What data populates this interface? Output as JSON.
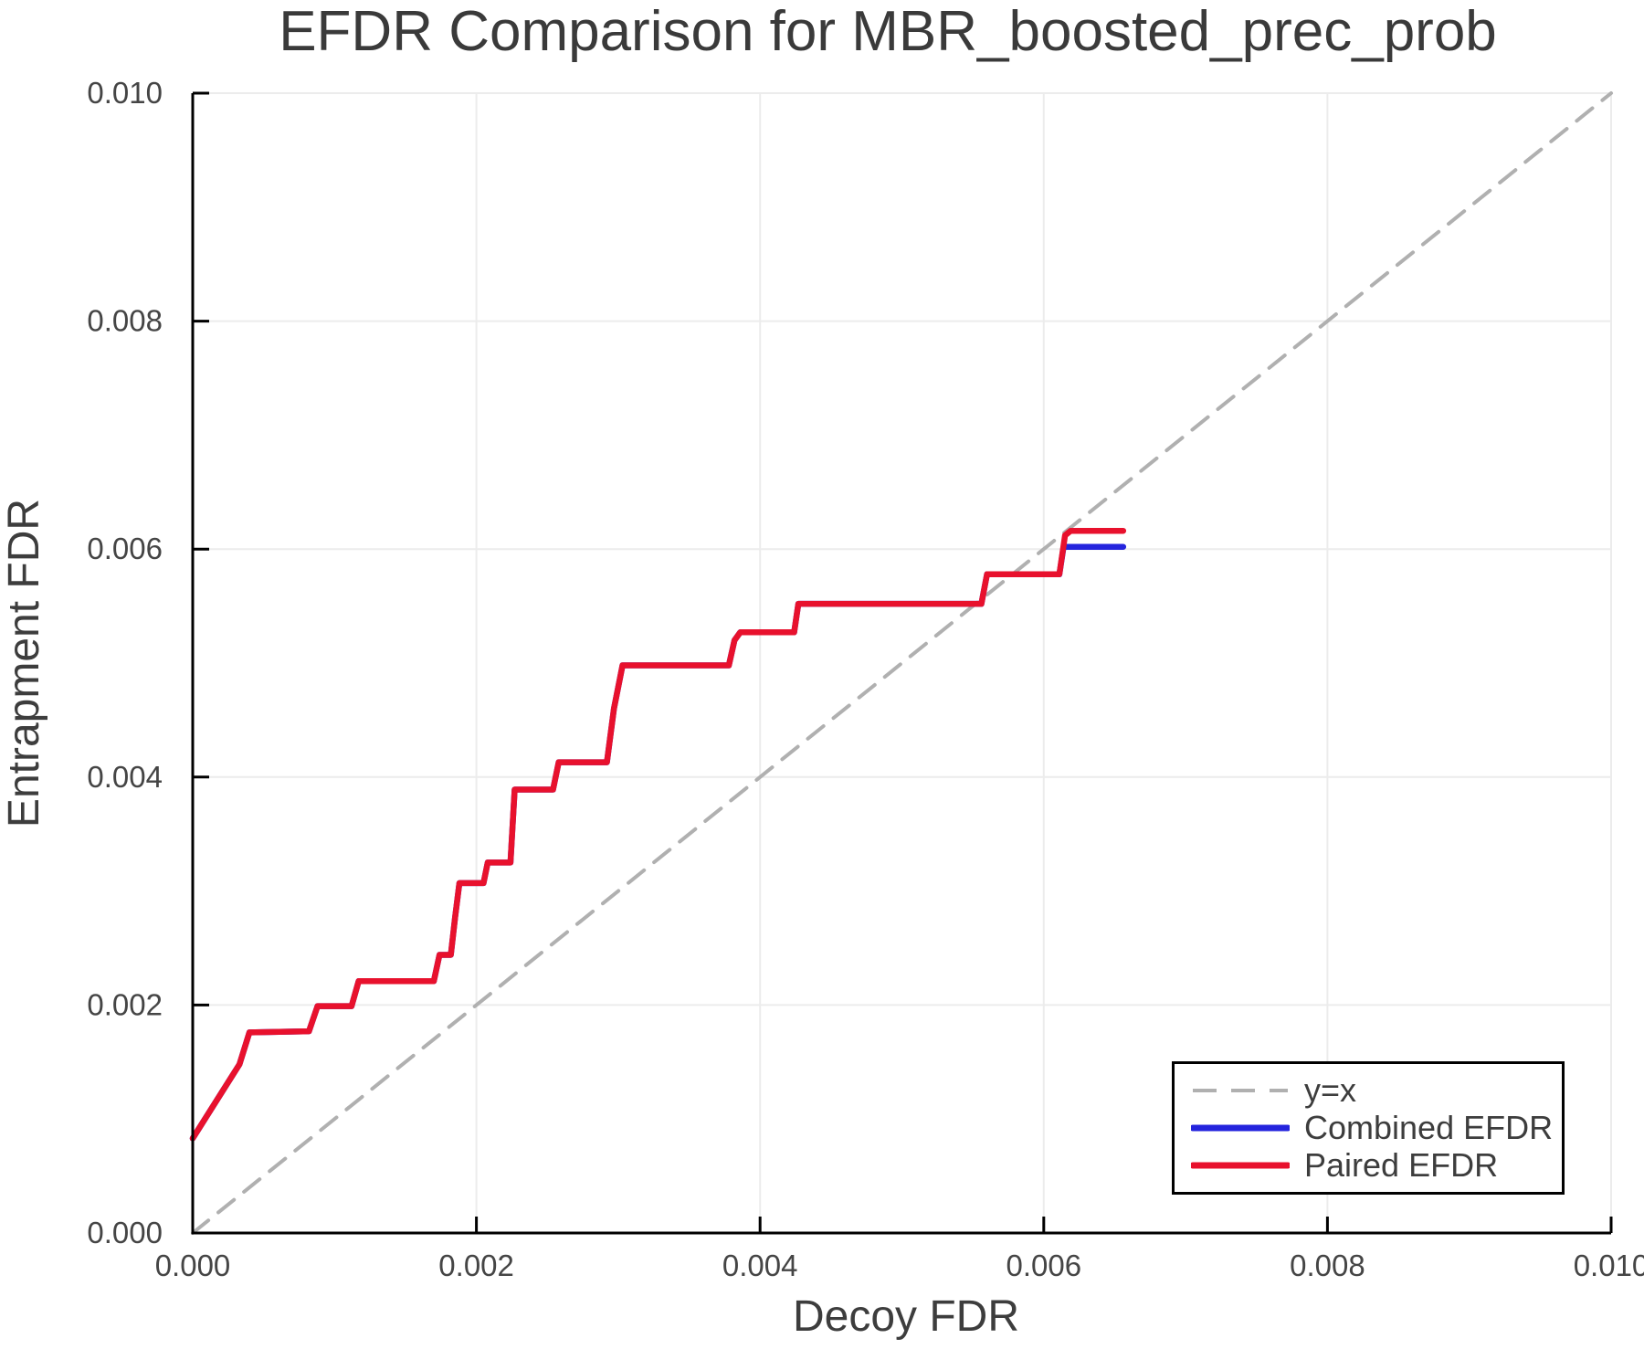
{
  "title": "EFDR Comparison for MBR_boosted_prec_prob",
  "colors": {
    "axis": "#000000",
    "grid": "#ececec",
    "text": "#3d3d3d",
    "reference_dash": "#b0b0b0",
    "combined": "#2424dd",
    "paired": "#e8112d"
  },
  "chart_data": {
    "type": "line",
    "title": "EFDR Comparison for MBR_boosted_prec_prob",
    "xlabel": "Decoy FDR",
    "ylabel": "Entrapment FDR",
    "xlim": [
      0.0,
      0.01
    ],
    "ylim": [
      0.0,
      0.01
    ],
    "xticks": [
      0.0,
      0.002,
      0.004,
      0.006,
      0.008,
      0.01
    ],
    "yticks": [
      0.0,
      0.002,
      0.004,
      0.006,
      0.008,
      0.01
    ],
    "tick_decimals": 3,
    "grid": true,
    "legend": {
      "position": "lower-right",
      "entries": [
        {
          "label": "y=x",
          "color": "#b0b0b0",
          "dashed": true
        },
        {
          "label": "Combined EFDR",
          "color": "#2424dd",
          "dashed": false
        },
        {
          "label": "Paired EFDR",
          "color": "#e8112d",
          "dashed": false
        }
      ]
    },
    "series": [
      {
        "name": "y=x",
        "color": "#b0b0b0",
        "style": "dashed",
        "width": 4,
        "points": [
          [
            0.0,
            0.0
          ],
          [
            0.01,
            0.01
          ]
        ]
      },
      {
        "name": "Combined EFDR",
        "color": "#2424dd",
        "style": "solid",
        "width": 6.5,
        "points": [
          [
            0.0,
            0.00083
          ],
          [
            0.00033,
            0.00148
          ],
          [
            0.0004,
            0.00176
          ],
          [
            0.00082,
            0.00177
          ],
          [
            0.00088,
            0.00199
          ],
          [
            0.00112,
            0.00199
          ],
          [
            0.00117,
            0.00221
          ],
          [
            0.0017,
            0.00221
          ],
          [
            0.00174,
            0.00244
          ],
          [
            0.00182,
            0.00244
          ],
          [
            0.00185,
            0.00277
          ],
          [
            0.00188,
            0.00307
          ],
          [
            0.00205,
            0.00307
          ],
          [
            0.00208,
            0.00325
          ],
          [
            0.00224,
            0.00325
          ],
          [
            0.00227,
            0.00389
          ],
          [
            0.00254,
            0.00389
          ],
          [
            0.00258,
            0.00413
          ],
          [
            0.00292,
            0.00413
          ],
          [
            0.00297,
            0.0046
          ],
          [
            0.00303,
            0.00498
          ],
          [
            0.00378,
            0.00498
          ],
          [
            0.00382,
            0.0052
          ],
          [
            0.00386,
            0.00527
          ],
          [
            0.00424,
            0.00527
          ],
          [
            0.00427,
            0.00552
          ],
          [
            0.00556,
            0.00552
          ],
          [
            0.0056,
            0.00578
          ],
          [
            0.00611,
            0.00578
          ],
          [
            0.00614,
            0.00602
          ],
          [
            0.00656,
            0.00602
          ]
        ]
      },
      {
        "name": "Paired EFDR",
        "color": "#e8112d",
        "style": "solid",
        "width": 6.5,
        "points": [
          [
            0.0,
            0.00083
          ],
          [
            0.00033,
            0.00148
          ],
          [
            0.0004,
            0.00176
          ],
          [
            0.00082,
            0.00177
          ],
          [
            0.00088,
            0.00199
          ],
          [
            0.00112,
            0.00199
          ],
          [
            0.00117,
            0.00221
          ],
          [
            0.0017,
            0.00221
          ],
          [
            0.00174,
            0.00244
          ],
          [
            0.00182,
            0.00244
          ],
          [
            0.00185,
            0.00277
          ],
          [
            0.00188,
            0.00307
          ],
          [
            0.00205,
            0.00307
          ],
          [
            0.00208,
            0.00325
          ],
          [
            0.00224,
            0.00325
          ],
          [
            0.00227,
            0.00389
          ],
          [
            0.00254,
            0.00389
          ],
          [
            0.00258,
            0.00413
          ],
          [
            0.00292,
            0.00413
          ],
          [
            0.00297,
            0.0046
          ],
          [
            0.00303,
            0.00498
          ],
          [
            0.00378,
            0.00498
          ],
          [
            0.00382,
            0.0052
          ],
          [
            0.00386,
            0.00527
          ],
          [
            0.00424,
            0.00527
          ],
          [
            0.00427,
            0.00552
          ],
          [
            0.00556,
            0.00552
          ],
          [
            0.0056,
            0.00578
          ],
          [
            0.00611,
            0.00578
          ],
          [
            0.00615,
            0.00612
          ],
          [
            0.00619,
            0.00616
          ],
          [
            0.00656,
            0.00616
          ]
        ]
      }
    ]
  }
}
